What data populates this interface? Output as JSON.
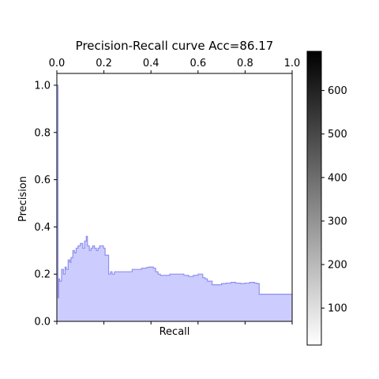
{
  "chart_data": {
    "type": "area",
    "title": "Precision-Recall curve Acc=86.17",
    "xlabel": "Recall",
    "ylabel": "Precision",
    "xlim": [
      0.0,
      1.0
    ],
    "ylim": [
      0.0,
      1.05
    ],
    "x_ticks_top": [
      "0.0",
      "0.2",
      "0.4",
      "0.6",
      "0.8",
      "1.0"
    ],
    "y_ticks": [
      "0.0",
      "0.2",
      "0.4",
      "0.6",
      "0.8",
      "1.0"
    ],
    "colorbar": {
      "range": [
        15,
        690
      ],
      "ticks": [
        "100",
        "200",
        "300",
        "400",
        "500",
        "600"
      ],
      "colormap": "gray_r"
    },
    "step": "post",
    "grid": false,
    "fill_color": "#ccccff",
    "line_color": "#8f8fef",
    "x": [
      0.0,
      0.005,
      0.008,
      0.012,
      0.02,
      0.028,
      0.035,
      0.04,
      0.048,
      0.055,
      0.06,
      0.068,
      0.075,
      0.082,
      0.09,
      0.1,
      0.11,
      0.118,
      0.125,
      0.13,
      0.138,
      0.145,
      0.152,
      0.16,
      0.168,
      0.175,
      0.182,
      0.19,
      0.198,
      0.205,
      0.22,
      0.228,
      0.235,
      0.245,
      0.26,
      0.28,
      0.3,
      0.32,
      0.34,
      0.36,
      0.38,
      0.39,
      0.4,
      0.41,
      0.42,
      0.43,
      0.44,
      0.46,
      0.48,
      0.5,
      0.52,
      0.53,
      0.54,
      0.56,
      0.58,
      0.6,
      0.61,
      0.62,
      0.63,
      0.64,
      0.65,
      0.66,
      0.68,
      0.7,
      0.72,
      0.74,
      0.76,
      0.78,
      0.8,
      0.82,
      0.83,
      0.84,
      0.85,
      0.86,
      0.88,
      0.9,
      0.92,
      0.95,
      1.0
    ],
    "y": [
      1.0,
      0.1,
      0.18,
      0.17,
      0.22,
      0.2,
      0.23,
      0.22,
      0.26,
      0.25,
      0.27,
      0.3,
      0.29,
      0.31,
      0.32,
      0.33,
      0.31,
      0.34,
      0.36,
      0.32,
      0.3,
      0.31,
      0.32,
      0.31,
      0.3,
      0.31,
      0.32,
      0.32,
      0.31,
      0.28,
      0.2,
      0.21,
      0.2,
      0.21,
      0.21,
      0.21,
      0.21,
      0.22,
      0.22,
      0.225,
      0.228,
      0.23,
      0.23,
      0.225,
      0.21,
      0.2,
      0.195,
      0.195,
      0.2,
      0.2,
      0.2,
      0.2,
      0.195,
      0.19,
      0.195,
      0.2,
      0.2,
      0.185,
      0.18,
      0.17,
      0.17,
      0.155,
      0.155,
      0.16,
      0.162,
      0.165,
      0.162,
      0.16,
      0.162,
      0.165,
      0.165,
      0.162,
      0.16,
      0.115,
      0.115,
      0.115,
      0.115,
      0.115,
      0.115
    ]
  }
}
